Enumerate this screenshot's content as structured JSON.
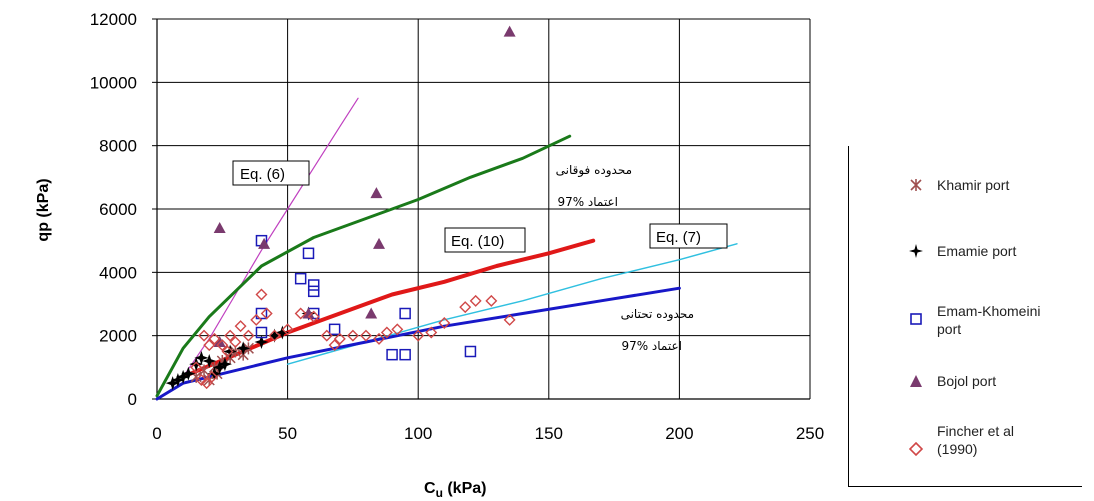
{
  "chart_data": {
    "type": "scatter",
    "title": "",
    "xlabel": "Cu (kPa)",
    "xlabel_main": "C",
    "xlabel_sub": "u",
    "xlabel_unit": " (kPa)",
    "ylabel": "qp (kPa)",
    "xlim": [
      0,
      250
    ],
    "ylim": [
      0,
      12000
    ],
    "x_ticks": [
      "0",
      "50",
      "100",
      "150",
      "200",
      "250"
    ],
    "y_ticks": [
      "0",
      "2000",
      "4000",
      "6000",
      "8000",
      "10000",
      "12000"
    ],
    "grid": true,
    "legend_position": "right",
    "series": [
      {
        "name": "Khamir port",
        "marker": "asterisk",
        "color": "#a05050",
        "points": [
          [
            15,
            700
          ],
          [
            18,
            900
          ],
          [
            20,
            600
          ],
          [
            22,
            1000
          ],
          [
            25,
            1200
          ],
          [
            28,
            1300
          ],
          [
            30,
            1500
          ],
          [
            33,
            1400
          ],
          [
            35,
            1600
          ],
          [
            23,
            800
          ]
        ]
      },
      {
        "name": "Emamie port",
        "marker": "star4",
        "color": "#000000",
        "points": [
          [
            6,
            500
          ],
          [
            8,
            600
          ],
          [
            10,
            700
          ],
          [
            12,
            800
          ],
          [
            15,
            1100
          ],
          [
            17,
            1300
          ],
          [
            20,
            1200
          ],
          [
            22,
            800
          ],
          [
            24,
            1000
          ],
          [
            26,
            1100
          ],
          [
            28,
            1500
          ],
          [
            33,
            1600
          ],
          [
            40,
            1800
          ],
          [
            45,
            2000
          ],
          [
            48,
            2100
          ],
          [
            58,
            2700
          ]
        ]
      },
      {
        "name": "Emam-Khomeini port",
        "marker": "square",
        "color": "#1a1ab8",
        "points": [
          [
            40,
            5000
          ],
          [
            40,
            2700
          ],
          [
            40,
            2100
          ],
          [
            55,
            3800
          ],
          [
            58,
            4600
          ],
          [
            60,
            3600
          ],
          [
            60,
            3400
          ],
          [
            60,
            2700
          ],
          [
            68,
            2200
          ],
          [
            90,
            1400
          ],
          [
            95,
            1400
          ],
          [
            95,
            2700
          ],
          [
            120,
            1500
          ]
        ]
      },
      {
        "name": "Bojol port",
        "marker": "triangle",
        "color": "#7a3a6e",
        "points": [
          [
            135,
            11600
          ],
          [
            84,
            6500
          ],
          [
            24,
            5400
          ],
          [
            41,
            4900
          ],
          [
            85,
            4900
          ],
          [
            24,
            1800
          ],
          [
            82,
            2700
          ],
          [
            58,
            2700
          ]
        ]
      },
      {
        "name": "Fincher et al (1990)",
        "marker": "diamond",
        "color": "#d04848",
        "points": [
          [
            18,
            2000
          ],
          [
            20,
            1700
          ],
          [
            22,
            1900
          ],
          [
            25,
            1700
          ],
          [
            27,
            1500
          ],
          [
            28,
            2000
          ],
          [
            30,
            1800
          ],
          [
            32,
            2300
          ],
          [
            35,
            2000
          ],
          [
            38,
            2500
          ],
          [
            40,
            3300
          ],
          [
            42,
            2700
          ],
          [
            45,
            2000
          ],
          [
            50,
            2200
          ],
          [
            55,
            2700
          ],
          [
            60,
            2600
          ],
          [
            65,
            2000
          ],
          [
            68,
            1700
          ],
          [
            70,
            1900
          ],
          [
            75,
            2000
          ],
          [
            80,
            2000
          ],
          [
            85,
            1900
          ],
          [
            88,
            2100
          ],
          [
            92,
            2200
          ],
          [
            100,
            2000
          ],
          [
            105,
            2100
          ],
          [
            110,
            2400
          ],
          [
            118,
            2900
          ],
          [
            122,
            3100
          ],
          [
            128,
            3100
          ],
          [
            135,
            2500
          ],
          [
            15,
            1000
          ],
          [
            17,
            600
          ],
          [
            19,
            500
          ],
          [
            21,
            700
          ]
        ]
      }
    ],
    "curves": [
      {
        "label": "Eq. (6)",
        "color": "#c040c0",
        "width": 1.2,
        "points": [
          [
            10,
            700
          ],
          [
            20,
            1900
          ],
          [
            30,
            3300
          ],
          [
            40,
            4700
          ],
          [
            50,
            6000
          ],
          [
            60,
            7300
          ],
          [
            70,
            8600
          ],
          [
            77,
            9500
          ]
        ]
      },
      {
        "label": "محدوده فوقانی",
        "color": "#1a7a1a",
        "width": 3,
        "points": [
          [
            0,
            100
          ],
          [
            10,
            1600
          ],
          [
            20,
            2600
          ],
          [
            30,
            3400
          ],
          [
            40,
            4200
          ],
          [
            60,
            5100
          ],
          [
            80,
            5700
          ],
          [
            100,
            6300
          ],
          [
            120,
            7000
          ],
          [
            140,
            7600
          ],
          [
            158,
            8300
          ]
        ]
      },
      {
        "label": "Eq. (10)",
        "color": "#e01818",
        "width": 4,
        "points": [
          [
            10,
            700
          ],
          [
            30,
            1400
          ],
          [
            50,
            2100
          ],
          [
            70,
            2700
          ],
          [
            90,
            3300
          ],
          [
            110,
            3700
          ],
          [
            130,
            4200
          ],
          [
            150,
            4600
          ],
          [
            167,
            5000
          ]
        ]
      },
      {
        "label": "Eq. (7)",
        "color": "#30c0e0",
        "width": 1.5,
        "points": [
          [
            50,
            1100
          ],
          [
            80,
            1800
          ],
          [
            110,
            2500
          ],
          [
            140,
            3100
          ],
          [
            170,
            3800
          ],
          [
            200,
            4400
          ],
          [
            222,
            4900
          ]
        ]
      },
      {
        "label": "محدوده تحتانی",
        "color": "#1818c8",
        "width": 3,
        "points": [
          [
            0,
            0
          ],
          [
            10,
            500
          ],
          [
            25,
            800
          ],
          [
            50,
            1300
          ],
          [
            80,
            1800
          ],
          [
            110,
            2300
          ],
          [
            140,
            2700
          ],
          [
            170,
            3100
          ],
          [
            200,
            3500
          ]
        ]
      }
    ],
    "annotations": {
      "eq6": "Eq. (6)",
      "eq10": "Eq. (10)",
      "eq7": "Eq. (7)",
      "upper_fa": "محدوده فوقانی",
      "upper_sub": "اعتماد %97",
      "lower_fa": "محدوده تحتانی",
      "lower_sub": "اعتماد %97"
    }
  },
  "legend": {
    "items": [
      {
        "label": "Khamir port"
      },
      {
        "label": "Emamie port"
      },
      {
        "label": "Emam-Khomeini port"
      },
      {
        "label": "Bojol port"
      },
      {
        "label": "Fincher et al (1990)"
      }
    ]
  }
}
